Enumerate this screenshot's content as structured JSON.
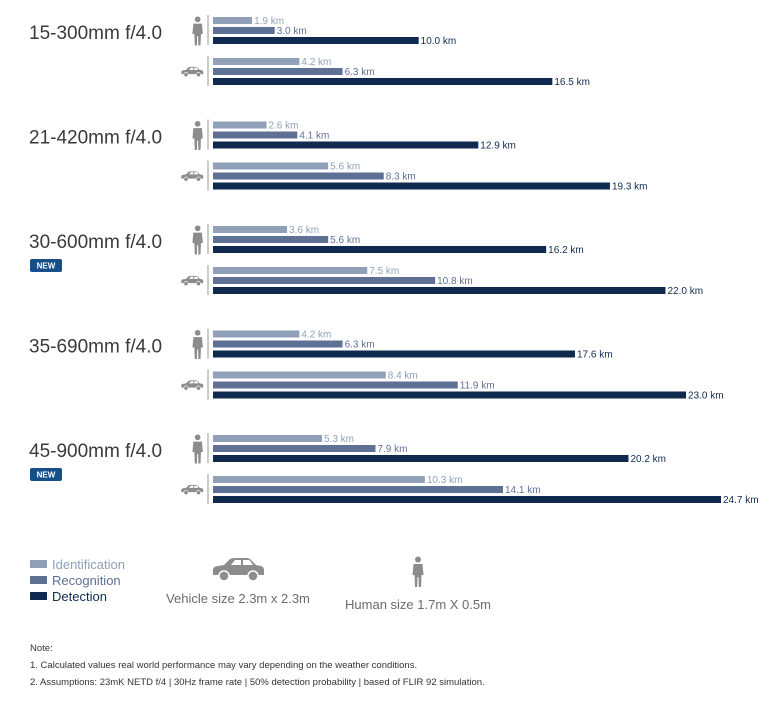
{
  "colors": {
    "identification": "#8fa0b8",
    "recognition": "#5e7194",
    "detection": "#0f2a4e",
    "new_badge": "#174f88",
    "icon": "#8c8c8c",
    "axis": "#9a9a9a"
  },
  "chart_data": {
    "type": "bar",
    "orientation": "horizontal",
    "unit": "km",
    "xlim": [
      0,
      24.7
    ],
    "series_names": [
      "Identification",
      "Recognition",
      "Detection"
    ],
    "target_names": [
      "Human",
      "Vehicle"
    ],
    "lenses": [
      {
        "name": "15-300mm f/4.0",
        "is_new": false,
        "human": {
          "values": [
            1.9,
            3.0,
            10.0
          ],
          "labels": [
            "1.9 km",
            "3.0 km",
            "10.0 km"
          ]
        },
        "vehicle": {
          "values": [
            4.2,
            6.3,
            16.5
          ],
          "labels": [
            "4.2 km",
            "6.3 km",
            "16.5 km"
          ]
        }
      },
      {
        "name": "21-420mm f/4.0",
        "is_new": false,
        "human": {
          "values": [
            2.6,
            4.1,
            12.9
          ],
          "labels": [
            "2.6 km",
            "4.1 km",
            "12.9 km"
          ]
        },
        "vehicle": {
          "values": [
            5.6,
            8.3,
            19.3
          ],
          "labels": [
            "5.6 km",
            "8.3 km",
            "19.3 km"
          ]
        }
      },
      {
        "name": "30-600mm f/4.0",
        "is_new": true,
        "human": {
          "values": [
            3.6,
            5.6,
            16.2
          ],
          "labels": [
            "3.6 km",
            "5.6 km",
            "16.2 km"
          ]
        },
        "vehicle": {
          "values": [
            7.5,
            10.8,
            22.0
          ],
          "labels": [
            "7.5 km",
            "10.8 km",
            "22.0 km"
          ]
        }
      },
      {
        "name": "35-690mm f/4.0",
        "is_new": false,
        "human": {
          "values": [
            4.2,
            6.3,
            17.6
          ],
          "labels": [
            "4.2 km",
            "6.3 km",
            "17.6 km"
          ]
        },
        "vehicle": {
          "values": [
            8.4,
            11.9,
            23.0
          ],
          "labels": [
            "8.4 km",
            "11.9 km",
            "23.0 km"
          ]
        }
      },
      {
        "name": "45-900mm f/4.0",
        "is_new": true,
        "human": {
          "values": [
            5.3,
            7.9,
            20.2
          ],
          "labels": [
            "5.3 km",
            "7.9 km",
            "20.2 km"
          ]
        },
        "vehicle": {
          "values": [
            10.3,
            14.1,
            24.7
          ],
          "labels": [
            "10.3 km",
            "14.1 km",
            "24.7 km"
          ]
        }
      }
    ]
  },
  "badge": {
    "new_label": "NEW"
  },
  "legend": {
    "identification": "Identification",
    "recognition": "Recognition",
    "detection": "Detection",
    "vehicle_size": "Vehicle size 2.3m x 2.3m",
    "human_size": "Human size 1.7m X 0.5m"
  },
  "notes": {
    "title": "Note:",
    "line1": "1. Calculated values real world performance may vary depending on the weather conditions.",
    "line2": "2. Assumptions: 23mK NETD f/4 | 30Hz frame rate | 50% detection probability | based of FLIR 92 simulation."
  }
}
